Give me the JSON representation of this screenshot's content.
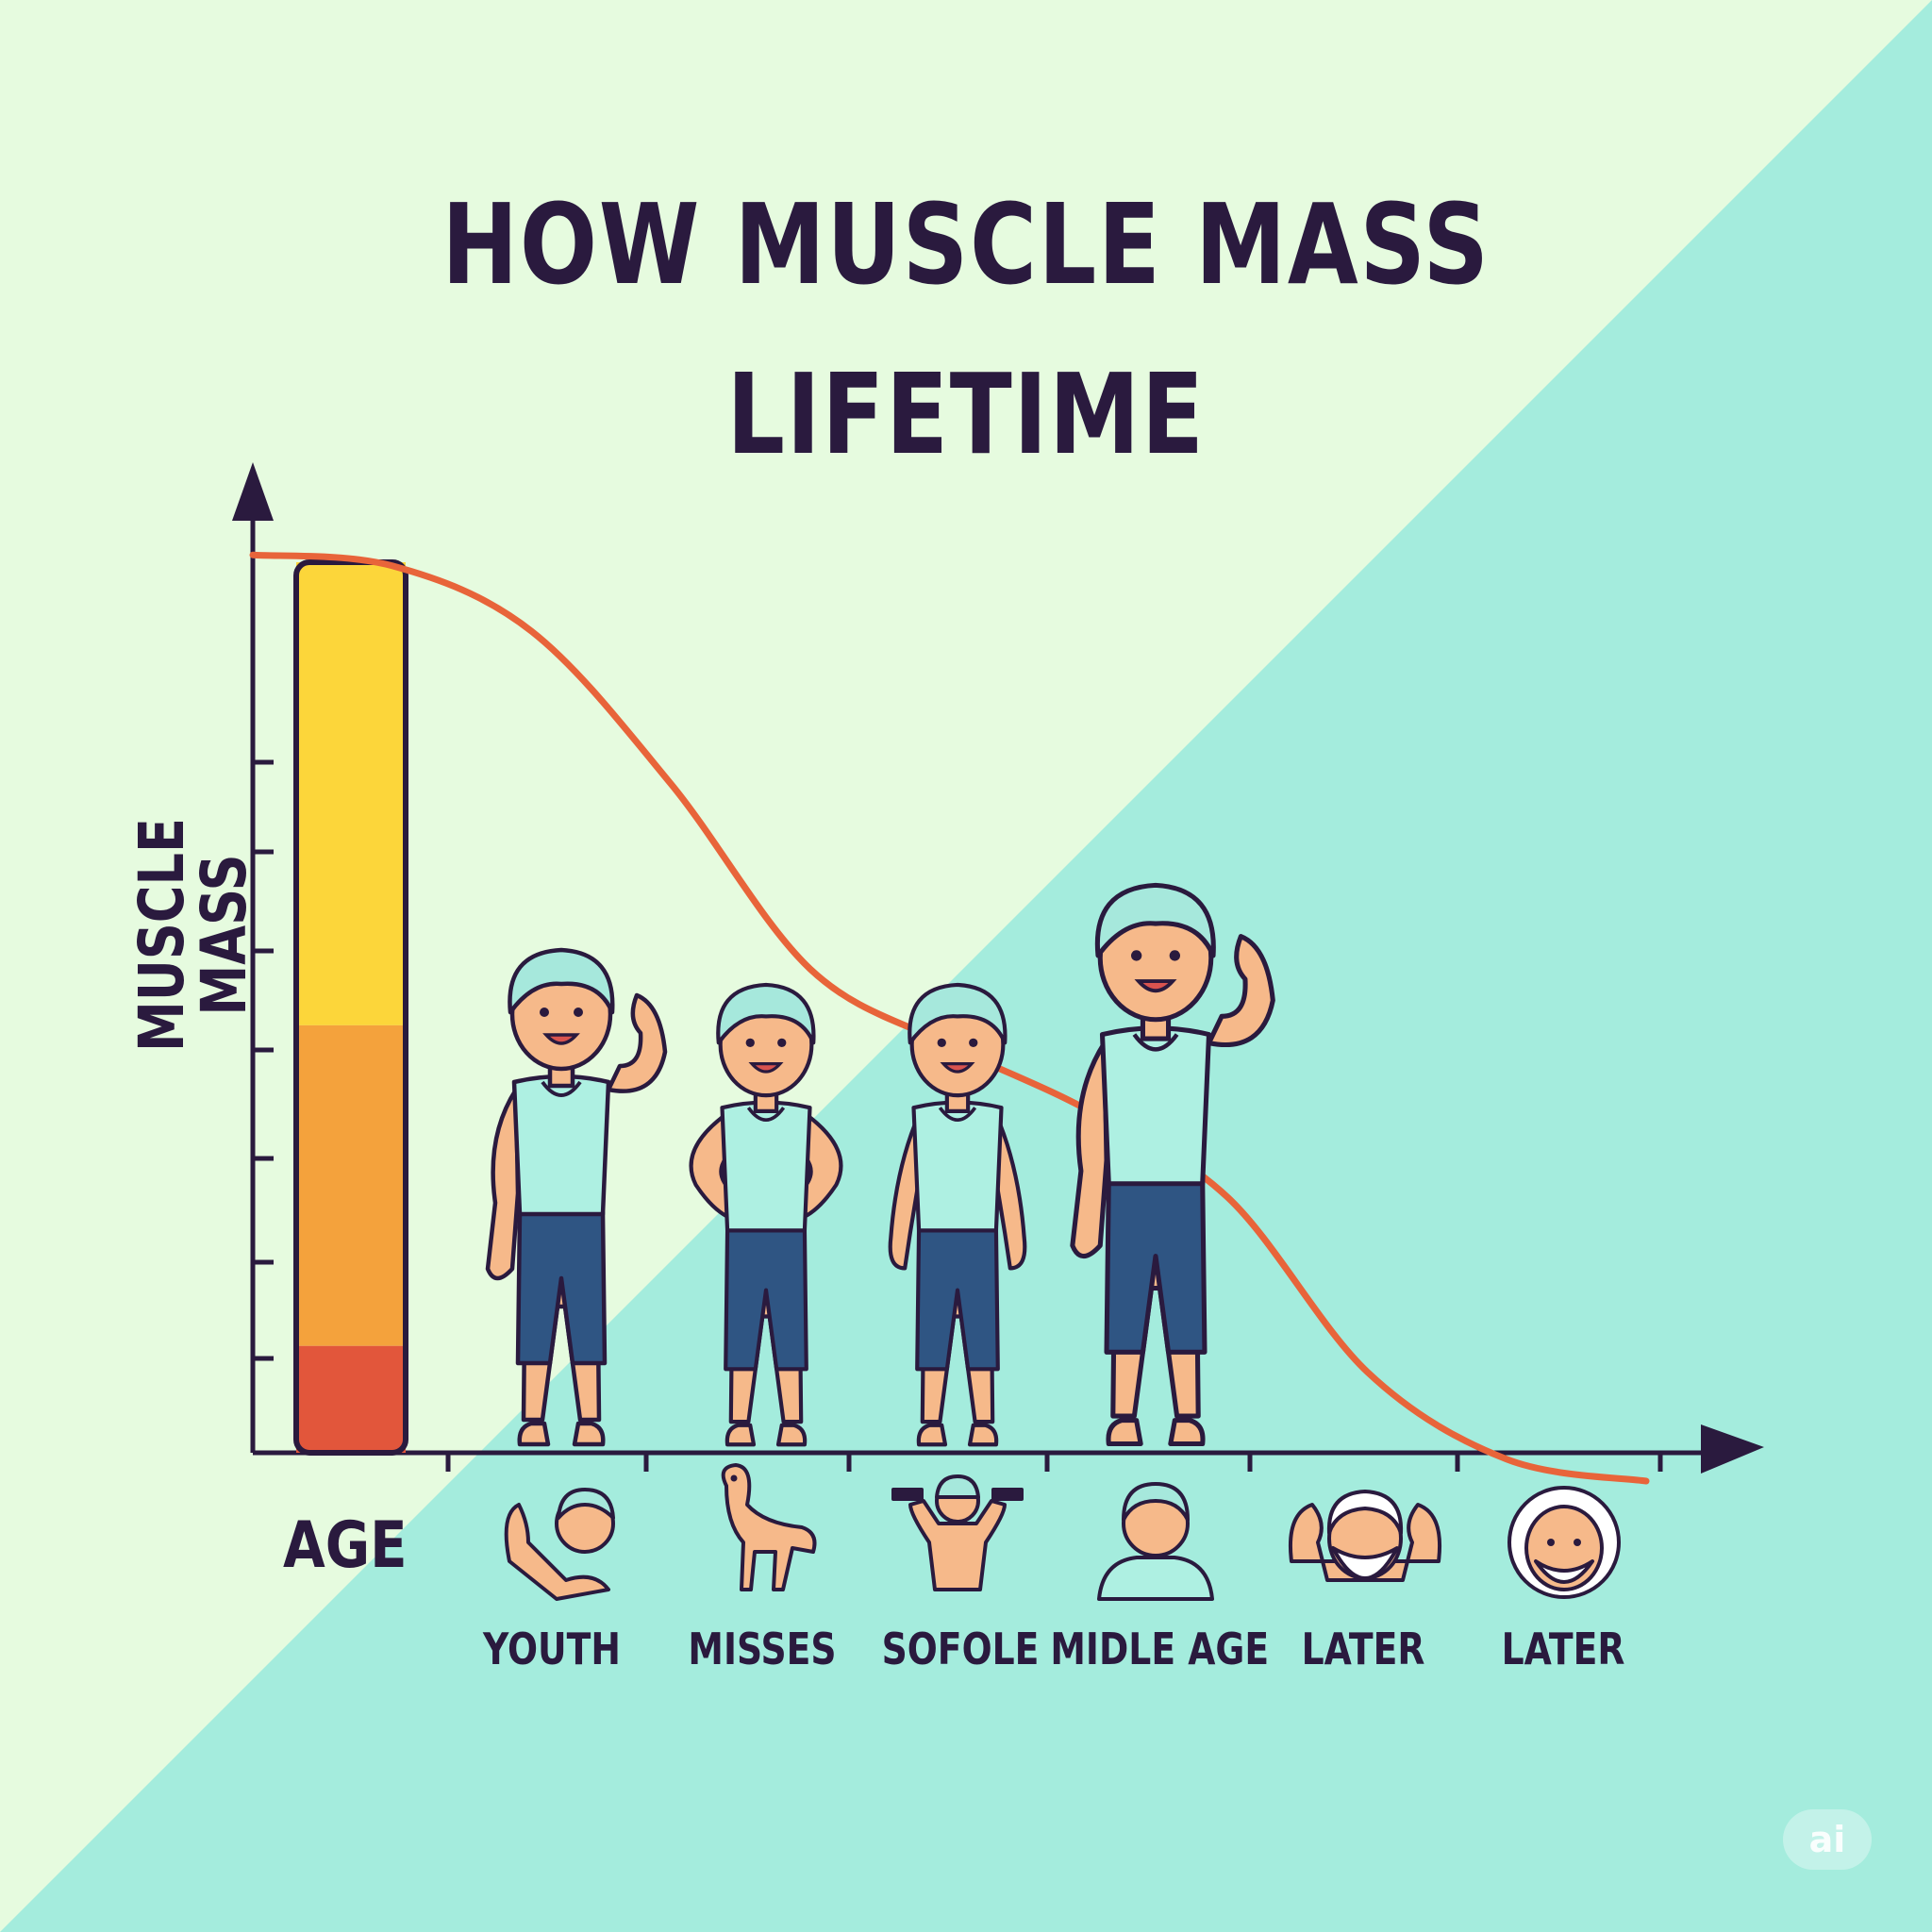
{
  "title": {
    "line1": "HOW MUSCLE MASS",
    "line2": "LIFETIME"
  },
  "colors": {
    "bg_light": "#e6fbdf",
    "bg_teal": "#a4ecdd",
    "axis": "#2a1a3e",
    "curve": "#e8643a",
    "bar_top": "#fcd63a",
    "bar_mid": "#f4a23c",
    "bar_bottom": "#e2563b",
    "skin": "#f6b98a",
    "hair": "#a6e8dc",
    "shirt": "#aef0e2",
    "shorts": "#2f5583"
  },
  "chart_data": {
    "type": "line",
    "xlabel": "AGE",
    "ylabel": "MUSCLE MASS",
    "categories": [
      "YOUTH",
      "MISSES",
      "SOFOLE",
      "MIDLE AGE",
      "LATER",
      "LATER"
    ],
    "curve_trend": "declining",
    "x": [
      0,
      0.1,
      0.2,
      0.3,
      0.4,
      0.5,
      0.6,
      0.7,
      0.8,
      0.9,
      1.0
    ],
    "y": [
      0.85,
      0.84,
      0.78,
      0.64,
      0.47,
      0.4,
      0.34,
      0.26,
      0.1,
      0.02,
      0.0
    ],
    "series": [
      {
        "values": [
          0.85,
          0.84,
          0.78,
          0.64,
          0.47,
          0.4,
          0.34,
          0.26,
          0.1,
          0.02,
          0.0
        ]
      }
    ],
    "bar": {
      "segments": [
        {
          "name": "high",
          "color": "#fcd63a",
          "fraction_start": 0.48,
          "fraction_end": 1.0
        },
        {
          "name": "mid",
          "color": "#f4a23c",
          "fraction_start": 0.12,
          "fraction_end": 0.48
        },
        {
          "name": "low",
          "color": "#e2563b",
          "fraction_start": 0.0,
          "fraction_end": 0.12
        }
      ]
    },
    "grid": false,
    "legend": "none"
  },
  "figures": [
    {
      "name": "youth-flexing",
      "pose": "flex"
    },
    {
      "name": "adult-hands-on-hips",
      "pose": "hips"
    },
    {
      "name": "adult-standing",
      "pose": "stand"
    },
    {
      "name": "middle-age-flexing",
      "pose": "flex"
    }
  ],
  "stage_icons": [
    "flexing-baby-icon",
    "bird-icon",
    "dumbbell-lifter-icon",
    "child-bust-icon",
    "bearded-elder-flexing-icon",
    "elder-face-icon"
  ],
  "watermark": "ai"
}
